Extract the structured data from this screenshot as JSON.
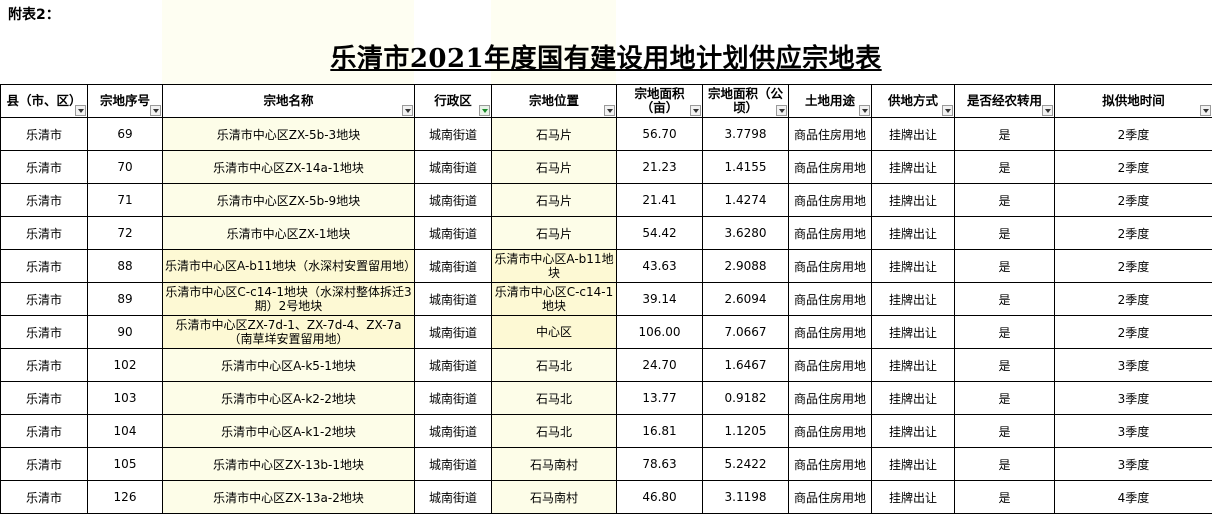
{
  "note": "附表2：",
  "title": "乐清市2021年度国有建设用地计划供应宗地表",
  "headers": [
    {
      "label": "县（市、区）",
      "filter": "normal"
    },
    {
      "label": "宗地序号",
      "filter": "normal"
    },
    {
      "label": "宗地名称",
      "filter": "normal"
    },
    {
      "label": "行政区",
      "filter": "active"
    },
    {
      "label": "宗地位置",
      "filter": "normal"
    },
    {
      "label": "宗地面积（亩）",
      "filter": "normal"
    },
    {
      "label": "宗地面积（公顷）",
      "filter": "normal"
    },
    {
      "label": "土地用途",
      "filter": "normal"
    },
    {
      "label": "供地方式",
      "filter": "normal"
    },
    {
      "label": "是否经农转用",
      "filter": "normal"
    },
    {
      "label": "拟供地时间",
      "filter": "normal"
    }
  ],
  "rows": [
    [
      "乐清市",
      "69",
      "乐清市中心区ZX-5b-3地块",
      "城南街道",
      "石马片",
      "56.70",
      "3.7798",
      "商品住房用地",
      "挂牌出让",
      "是",
      "2季度"
    ],
    [
      "乐清市",
      "70",
      "乐清市中心区ZX-14a-1地块",
      "城南街道",
      "石马片",
      "21.23",
      "1.4155",
      "商品住房用地",
      "挂牌出让",
      "是",
      "2季度"
    ],
    [
      "乐清市",
      "71",
      "乐清市中心区ZX-5b-9地块",
      "城南街道",
      "石马片",
      "21.41",
      "1.4274",
      "商品住房用地",
      "挂牌出让",
      "是",
      "2季度"
    ],
    [
      "乐清市",
      "72",
      "乐清市中心区ZX-1地块",
      "城南街道",
      "石马片",
      "54.42",
      "3.6280",
      "商品住房用地",
      "挂牌出让",
      "是",
      "2季度"
    ],
    [
      "乐清市",
      "88",
      "乐清市中心区A-b11地块（水深村安置留用地）",
      "城南街道",
      "乐清市中心区A-b11地块",
      "43.63",
      "2.9088",
      "商品住房用地",
      "挂牌出让",
      "是",
      "2季度"
    ],
    [
      "乐清市",
      "89",
      "乐清市中心区C-c14-1地块（水深村整体拆迁3期）2号地块",
      "城南街道",
      "乐清市中心区C-c14-1地块",
      "39.14",
      "2.6094",
      "商品住房用地",
      "挂牌出让",
      "是",
      "2季度"
    ],
    [
      "乐清市",
      "90",
      "乐清市中心区ZX-7d-1、ZX-7d-4、ZX-7a（南草垟安置留用地）",
      "城南街道",
      "中心区",
      "106.00",
      "7.0667",
      "商品住房用地",
      "挂牌出让",
      "是",
      "2季度"
    ],
    [
      "乐清市",
      "102",
      "乐清市中心区A-k5-1地块",
      "城南街道",
      "石马北",
      "24.70",
      "1.6467",
      "商品住房用地",
      "挂牌出让",
      "是",
      "3季度"
    ],
    [
      "乐清市",
      "103",
      "乐清市中心区A-k2-2地块",
      "城南街道",
      "石马北",
      "13.77",
      "0.9182",
      "商品住房用地",
      "挂牌出让",
      "是",
      "3季度"
    ],
    [
      "乐清市",
      "104",
      "乐清市中心区A-k1-2地块",
      "城南街道",
      "石马北",
      "16.81",
      "1.1205",
      "商品住房用地",
      "挂牌出让",
      "是",
      "3季度"
    ],
    [
      "乐清市",
      "105",
      "乐清市中心区ZX-13b-1地块",
      "城南街道",
      "石马南村",
      "78.63",
      "5.2422",
      "商品住房用地",
      "挂牌出让",
      "是",
      "3季度"
    ],
    [
      "乐清市",
      "126",
      "乐清市中心区ZX-13a-2地块",
      "城南街道",
      "石马南村",
      "46.80",
      "3.1198",
      "商品住房用地",
      "挂牌出让",
      "是",
      "4季度"
    ]
  ],
  "yellow_cells": [
    {
      "row": 4,
      "cols": [
        2,
        4
      ]
    },
    {
      "row": 5,
      "cols": [
        2,
        4
      ]
    },
    {
      "row": 6,
      "cols": [
        2,
        4
      ]
    }
  ]
}
